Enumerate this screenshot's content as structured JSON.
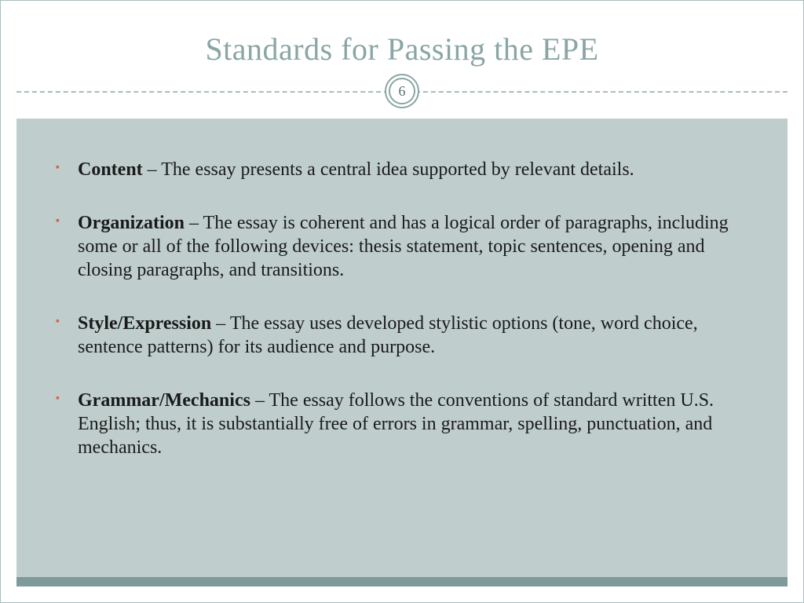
{
  "slide": {
    "title": "Standards for Passing the EPE",
    "page_number": "6",
    "colors": {
      "title_color": "#8aa5a5",
      "body_bg": "#bfcdcd",
      "bullet_color": "#c86b4a",
      "bottom_bar": "#7e9a9a",
      "border": "#a8bcbc",
      "text": "#1a1a1a"
    },
    "typography": {
      "title_fontsize": 40,
      "body_fontsize": 24,
      "font_family": "Georgia"
    },
    "bullets": [
      {
        "label": "Content",
        "desc": " – The essay presents a central idea supported by relevant details."
      },
      {
        "label": "Organization",
        "desc": " – The essay is coherent and has a logical order of paragraphs,  including some or all of the following devices: thesis statement, topic sentences, opening and closing paragraphs, and transitions."
      },
      {
        "label": "Style/Expression",
        "desc": " – The essay uses developed stylistic options (tone, word choice, sentence patterns) for its audience and purpose."
      },
      {
        "label": "Grammar/Mechanics",
        "desc": " – The essay follows the conventions of standard written U.S. English; thus, it is substantially free of errors in grammar, spelling, punctuation, and mechanics."
      }
    ]
  }
}
